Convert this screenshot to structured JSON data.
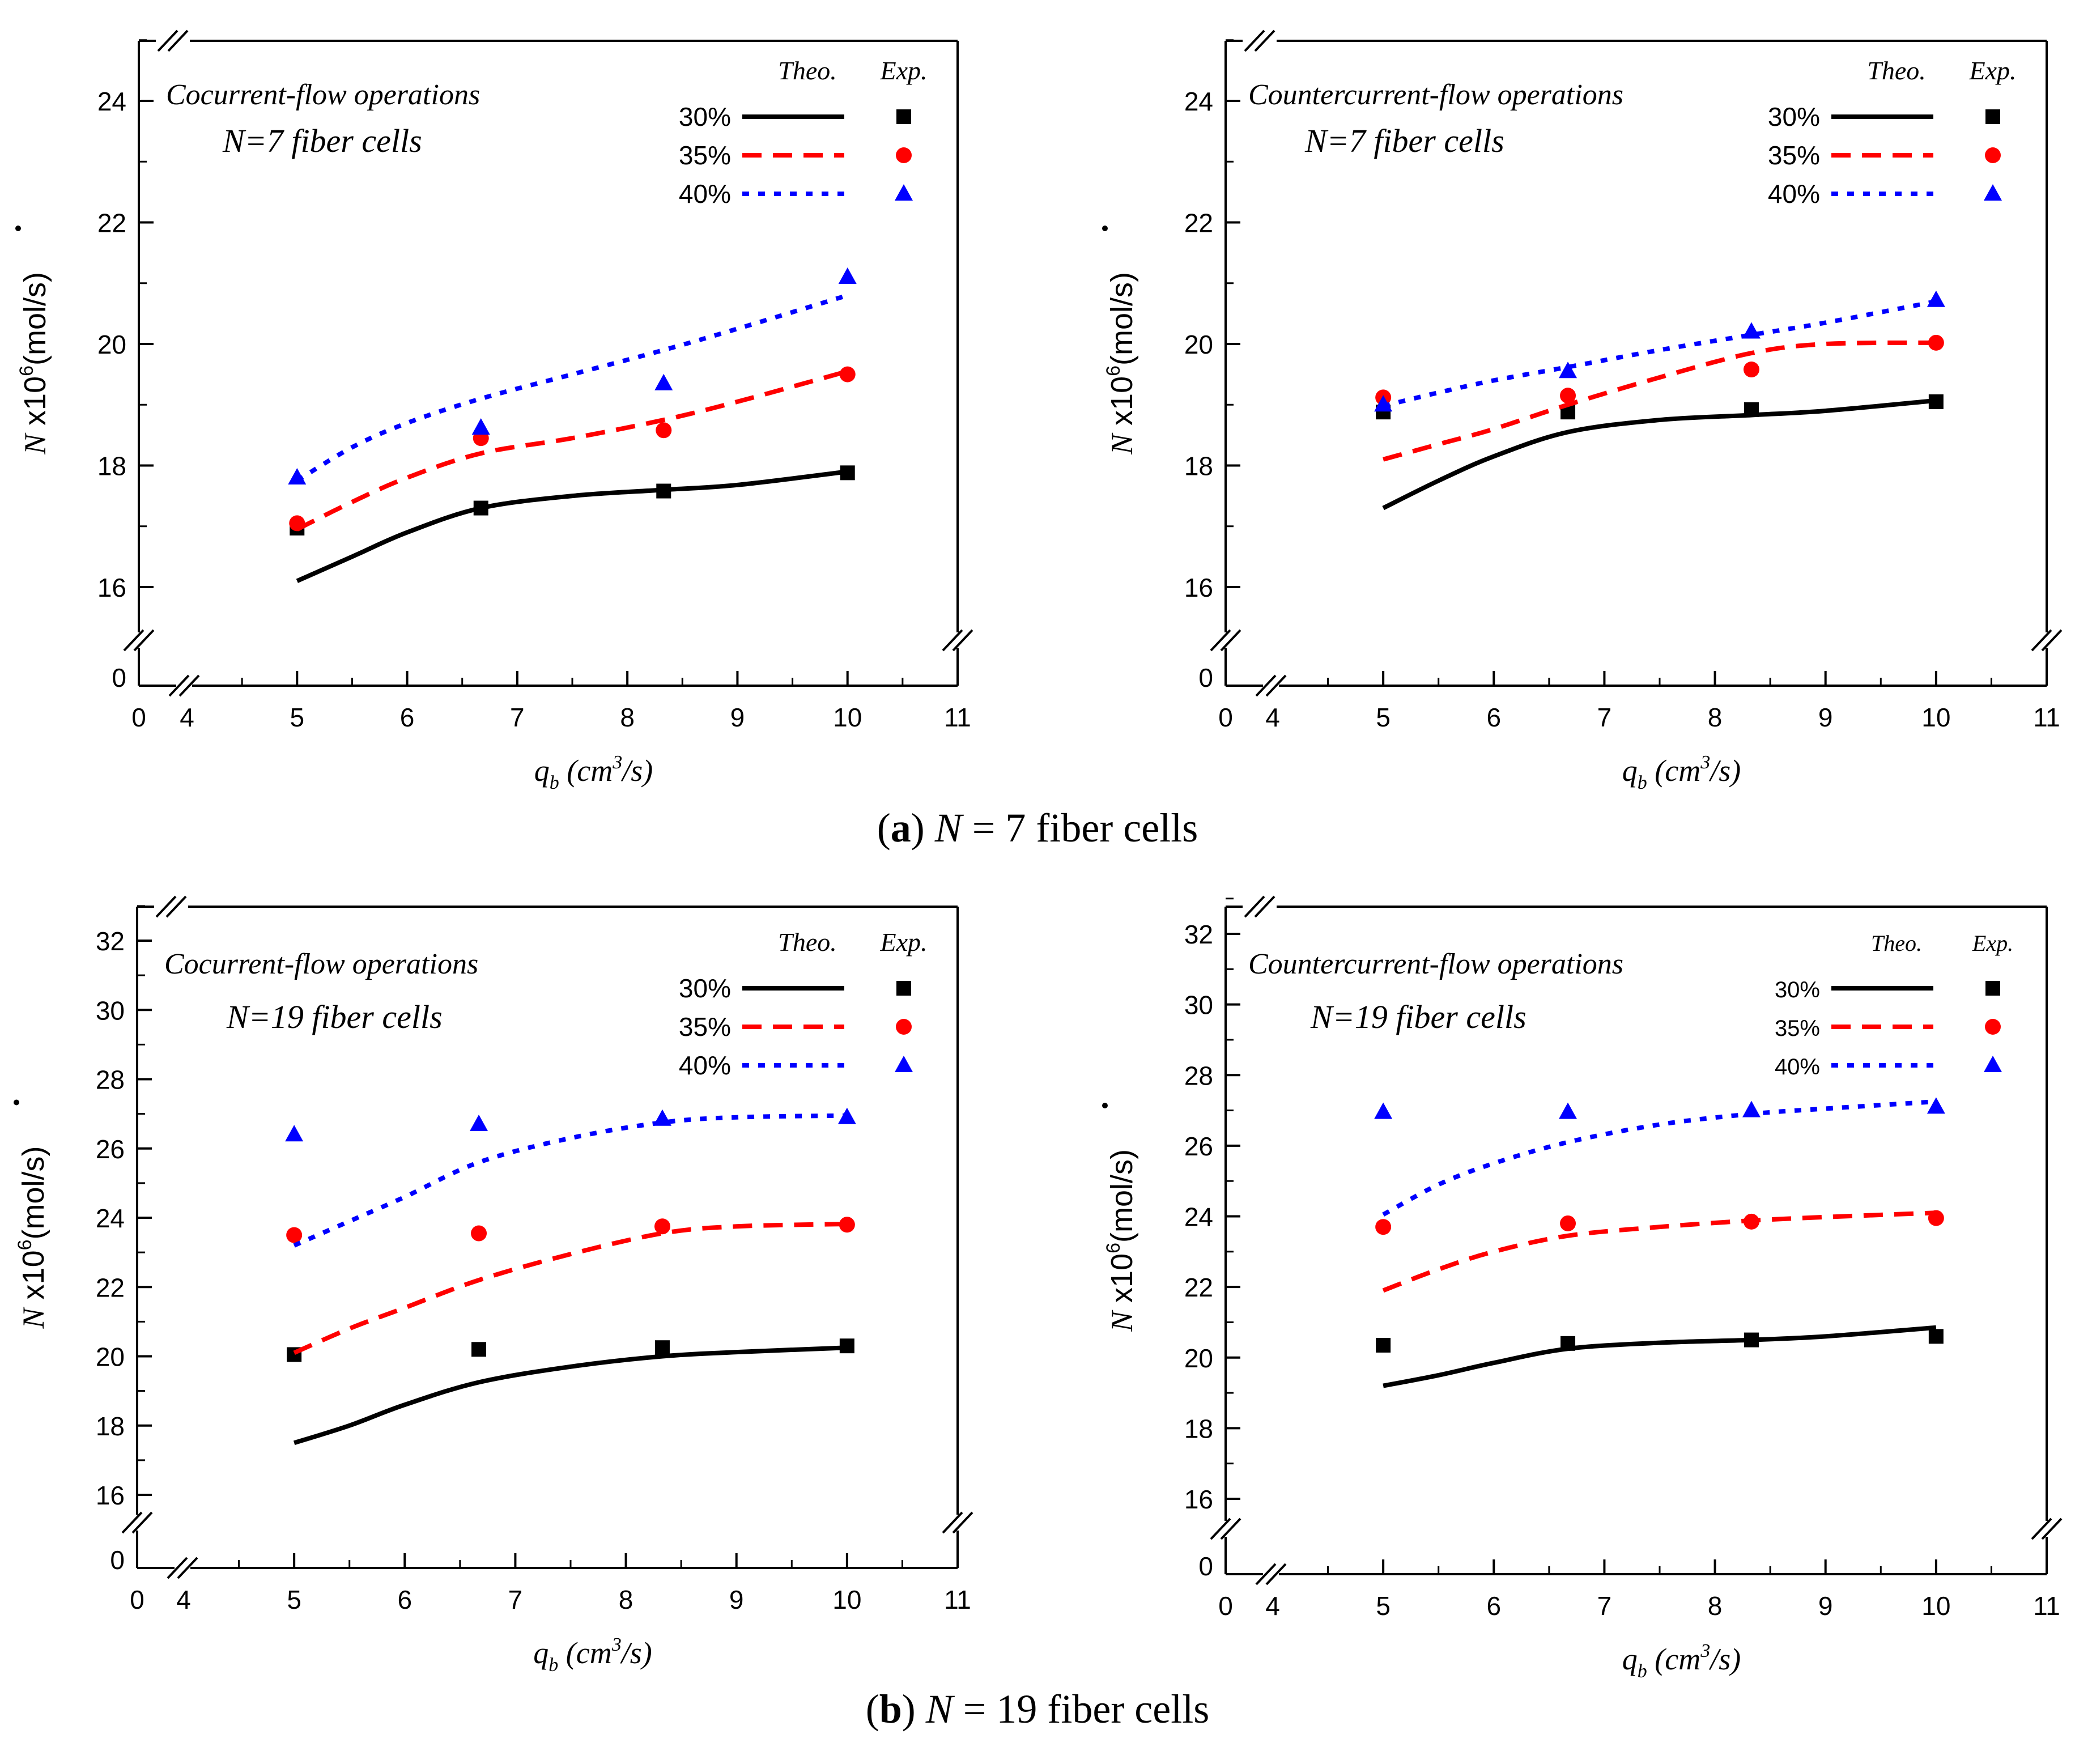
{
  "captions": [
    {
      "open": "(",
      "letter": "a",
      "close": ")",
      "n_sym": "N",
      "rest": " = 7 fiber cells"
    },
    {
      "open": "(",
      "letter": "b",
      "close": ")",
      "n_sym": "N",
      "rest": " = 19 fiber cells"
    }
  ],
  "chart_data": [
    {
      "type": "line",
      "title": "Cocurrent-flow operations",
      "subtitle": "N=7 fiber cells",
      "xlabel": "q_b (cm^3/s)",
      "ylabel": "N x10^6(mol/s)",
      "xlim": [
        4,
        11
      ],
      "ylim": [
        15,
        25
      ],
      "x_ticks": [
        4,
        5,
        6,
        7,
        8,
        9,
        10,
        11
      ],
      "y_ticks": [
        16,
        18,
        20,
        22,
        24
      ],
      "broken_axis_labels": {
        "x_zero": "0",
        "y_zero": "0"
      },
      "legend": {
        "position": "top-right",
        "theo_header": "Theo.",
        "exp_header": "Exp."
      },
      "series": [
        {
          "name": "30%",
          "color": "#000000",
          "dash": "solid",
          "marker": "square",
          "theo": {
            "x": [
              5,
              5.5,
              6,
              6.67,
              7.5,
              8.33,
              9,
              10
            ],
            "y": [
              16.1,
              16.5,
              16.9,
              17.3,
              17.5,
              17.6,
              17.68,
              17.9
            ]
          },
          "exp": {
            "x": [
              5,
              6.67,
              8.33,
              10
            ],
            "y": [
              16.97,
              17.3,
              17.58,
              17.88
            ]
          }
        },
        {
          "name": "35%",
          "color": "#ff0000",
          "dash": "dash",
          "marker": "circle",
          "theo": {
            "x": [
              5,
              5.5,
              6,
              6.67,
              7.5,
              8.33,
              9,
              10
            ],
            "y": [
              16.95,
              17.4,
              17.8,
              18.2,
              18.45,
              18.75,
              19.05,
              19.55
            ]
          },
          "exp": {
            "x": [
              5,
              6.67,
              8.33,
              10
            ],
            "y": [
              17.05,
              18.45,
              18.58,
              19.5
            ]
          }
        },
        {
          "name": "40%",
          "color": "#0000ff",
          "dash": "dot",
          "marker": "triangle",
          "theo": {
            "x": [
              5,
              5.5,
              6,
              6.67,
              7.5,
              8.33,
              9,
              10
            ],
            "y": [
              17.75,
              18.3,
              18.7,
              19.1,
              19.5,
              19.9,
              20.25,
              20.8
            ]
          },
          "exp": {
            "x": [
              5,
              6.67,
              8.33,
              10
            ],
            "y": [
              17.8,
              18.62,
              19.35,
              21.1
            ]
          }
        }
      ]
    },
    {
      "type": "line",
      "title": "Countercurrent-flow operations",
      "subtitle": "N=7 fiber cells",
      "xlabel": "q_b (cm^3/s)",
      "ylabel": "N x10^6(mol/s)",
      "xlim": [
        4,
        11
      ],
      "ylim": [
        15,
        25
      ],
      "x_ticks": [
        4,
        5,
        6,
        7,
        8,
        9,
        10,
        11
      ],
      "y_ticks": [
        16,
        18,
        20,
        22,
        24
      ],
      "broken_axis_labels": {
        "x_zero": "0",
        "y_zero": "0"
      },
      "legend": {
        "position": "top-right",
        "theo_header": "Theo.",
        "exp_header": "Exp."
      },
      "series": [
        {
          "name": "30%",
          "color": "#000000",
          "dash": "solid",
          "marker": "square",
          "theo": {
            "x": [
              5,
              5.5,
              6,
              6.67,
              7.5,
              8.33,
              9,
              10
            ],
            "y": [
              17.3,
              17.75,
              18.15,
              18.55,
              18.75,
              18.83,
              18.9,
              19.07
            ]
          },
          "exp": {
            "x": [
              5,
              6.67,
              8.33,
              10
            ],
            "y": [
              18.88,
              18.88,
              18.92,
              19.05
            ]
          }
        },
        {
          "name": "35%",
          "color": "#ff0000",
          "dash": "dash",
          "marker": "circle",
          "theo": {
            "x": [
              5,
              5.5,
              6,
              6.67,
              7.5,
              8.33,
              9,
              10
            ],
            "y": [
              18.1,
              18.35,
              18.6,
              19.0,
              19.45,
              19.85,
              20.0,
              20.02
            ]
          },
          "exp": {
            "x": [
              5,
              6.67,
              8.33,
              10
            ],
            "y": [
              19.12,
              19.15,
              19.58,
              20.02
            ]
          }
        },
        {
          "name": "40%",
          "color": "#0000ff",
          "dash": "dot",
          "marker": "triangle",
          "theo": {
            "x": [
              5,
              5.5,
              6,
              6.67,
              7.5,
              8.33,
              9,
              10
            ],
            "y": [
              18.98,
              19.2,
              19.4,
              19.62,
              19.9,
              20.15,
              20.35,
              20.7
            ]
          },
          "exp": {
            "x": [
              5,
              6.67,
              8.33,
              10
            ],
            "y": [
              19.0,
              19.55,
              20.2,
              20.72
            ]
          }
        }
      ]
    },
    {
      "type": "line",
      "title": "Cocurrent-flow operations",
      "subtitle": "N=19 fiber cells",
      "xlabel": "q_b (cm^3/s)",
      "ylabel": "N x10^6(mol/s)",
      "xlim": [
        4,
        11
      ],
      "ylim": [
        15,
        33
      ],
      "x_ticks": [
        4,
        5,
        6,
        7,
        8,
        9,
        10,
        11
      ],
      "y_ticks": [
        16,
        18,
        20,
        22,
        24,
        26,
        28,
        30,
        32
      ],
      "broken_axis_labels": {
        "x_zero": "0",
        "y_zero": "0"
      },
      "legend": {
        "position": "top-right",
        "theo_header": "Theo.",
        "exp_header": "Exp."
      },
      "series": [
        {
          "name": "30%",
          "color": "#000000",
          "dash": "solid",
          "marker": "square",
          "theo": {
            "x": [
              5,
              5.5,
              6,
              6.67,
              7.5,
              8.33,
              9,
              10
            ],
            "y": [
              17.5,
              18.0,
              18.6,
              19.25,
              19.7,
              20.0,
              20.12,
              20.25
            ]
          },
          "exp": {
            "x": [
              5,
              6.67,
              8.33,
              10
            ],
            "y": [
              20.05,
              20.2,
              20.25,
              20.3
            ]
          }
        },
        {
          "name": "35%",
          "color": "#ff0000",
          "dash": "dash",
          "marker": "circle",
          "theo": {
            "x": [
              5,
              5.5,
              6,
              6.67,
              7.5,
              8.33,
              9,
              10
            ],
            "y": [
              20.1,
              20.8,
              21.4,
              22.2,
              22.95,
              23.55,
              23.75,
              23.82
            ]
          },
          "exp": {
            "x": [
              5,
              6.67,
              8.33,
              10
            ],
            "y": [
              23.5,
              23.55,
              23.75,
              23.8
            ]
          }
        },
        {
          "name": "40%",
          "color": "#0000ff",
          "dash": "dot",
          "marker": "triangle",
          "theo": {
            "x": [
              5,
              5.5,
              6,
              6.67,
              7.5,
              8.33,
              9,
              10
            ],
            "y": [
              23.2,
              23.9,
              24.6,
              25.6,
              26.3,
              26.75,
              26.9,
              26.95
            ]
          },
          "exp": {
            "x": [
              5,
              6.67,
              8.33,
              10
            ],
            "y": [
              26.4,
              26.7,
              26.85,
              26.9
            ]
          }
        }
      ]
    },
    {
      "type": "line",
      "title": "Countercurrent-flow operations",
      "subtitle": "N=19 fiber cells",
      "xlabel": "q_b (cm^3/s)",
      "ylabel": "N x10^6(mol/s)",
      "xlim": [
        4,
        11
      ],
      "ylim": [
        15,
        33
      ],
      "x_ticks": [
        4,
        5,
        6,
        7,
        8,
        9,
        10,
        11
      ],
      "y_ticks": [
        16,
        18,
        20,
        22,
        24,
        26,
        28,
        30,
        32
      ],
      "broken_axis_labels": {
        "x_zero": "0",
        "y_zero": "0"
      },
      "legend": {
        "position": "top-right",
        "theo_header": "Theo.",
        "exp_header": "Exp."
      },
      "series": [
        {
          "name": "30%",
          "color": "#000000",
          "dash": "solid",
          "marker": "square",
          "theo": {
            "x": [
              5,
              5.5,
              6,
              6.67,
              7.5,
              8.33,
              9,
              10
            ],
            "y": [
              19.2,
              19.5,
              19.85,
              20.25,
              20.42,
              20.5,
              20.6,
              20.85
            ]
          },
          "exp": {
            "x": [
              5,
              6.67,
              8.33,
              10
            ],
            "y": [
              20.35,
              20.4,
              20.5,
              20.6
            ]
          }
        },
        {
          "name": "35%",
          "color": "#ff0000",
          "dash": "dash",
          "marker": "circle",
          "theo": {
            "x": [
              5,
              5.5,
              6,
              6.67,
              7.5,
              8.33,
              9,
              10
            ],
            "y": [
              21.9,
              22.5,
              23.0,
              23.45,
              23.7,
              23.88,
              23.98,
              24.1
            ]
          },
          "exp": {
            "x": [
              5,
              6.67,
              8.33,
              10
            ],
            "y": [
              23.7,
              23.8,
              23.85,
              23.95
            ]
          }
        },
        {
          "name": "40%",
          "color": "#0000ff",
          "dash": "dot",
          "marker": "triangle",
          "theo": {
            "x": [
              5,
              5.5,
              6,
              6.67,
              7.5,
              8.33,
              9,
              10
            ],
            "y": [
              24.05,
              24.9,
              25.5,
              26.1,
              26.6,
              26.9,
              27.05,
              27.25
            ]
          },
          "exp": {
            "x": [
              5,
              6.67,
              8.33,
              10
            ],
            "y": [
              26.95,
              26.95,
              27.0,
              27.1
            ]
          }
        }
      ]
    }
  ]
}
